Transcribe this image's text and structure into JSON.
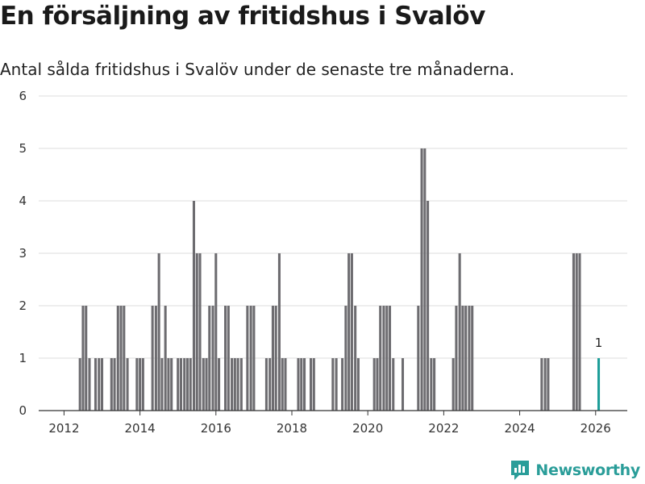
{
  "header": {
    "title": "En försäljning av fritidshus i Svalöv",
    "subtitle": "Antal sålda fritidshus i Svalöv under de senaste tre månaderna."
  },
  "brand": {
    "name": "Newsworthy"
  },
  "colors": {
    "bar": "#6d6c70",
    "highlight": "#1f9e99",
    "grid": "#dcdcdc"
  },
  "chart_data": {
    "type": "bar",
    "title": "En försäljning av fritidshus i Svalöv",
    "subtitle": "Antal sålda fritidshus i Svalöv under de senaste tre månaderna.",
    "xlabel": "",
    "ylabel": "",
    "ylim": [
      0,
      6
    ],
    "y_ticks": [
      "0",
      "1",
      "2",
      "3",
      "4",
      "5",
      "6"
    ],
    "xlim": [
      2011.333,
      2026.833
    ],
    "x_ticks": [
      {
        "label": "2012",
        "value": 2012
      },
      {
        "label": "2014",
        "value": 2014
      },
      {
        "label": "2016",
        "value": 2016
      },
      {
        "label": "2018",
        "value": 2018
      },
      {
        "label": "2020",
        "value": 2020
      },
      {
        "label": "2022",
        "value": 2022
      },
      {
        "label": "2024",
        "value": 2024
      },
      {
        "label": "2026",
        "value": 2026
      }
    ],
    "grid": true,
    "bar_width_years": 0.065,
    "series": [
      {
        "name": "Antal sålda fritidshus",
        "points": [
          {
            "x": 2012.42,
            "y": 1
          },
          {
            "x": 2012.5,
            "y": 2
          },
          {
            "x": 2012.58,
            "y": 2
          },
          {
            "x": 2012.67,
            "y": 1
          },
          {
            "x": 2012.83,
            "y": 1
          },
          {
            "x": 2012.92,
            "y": 1
          },
          {
            "x": 2013.0,
            "y": 1
          },
          {
            "x": 2013.25,
            "y": 1
          },
          {
            "x": 2013.33,
            "y": 1
          },
          {
            "x": 2013.42,
            "y": 2
          },
          {
            "x": 2013.5,
            "y": 2
          },
          {
            "x": 2013.58,
            "y": 2
          },
          {
            "x": 2013.67,
            "y": 1
          },
          {
            "x": 2013.92,
            "y": 1
          },
          {
            "x": 2014.0,
            "y": 1
          },
          {
            "x": 2014.08,
            "y": 1
          },
          {
            "x": 2014.33,
            "y": 2
          },
          {
            "x": 2014.42,
            "y": 2
          },
          {
            "x": 2014.5,
            "y": 3
          },
          {
            "x": 2014.58,
            "y": 1
          },
          {
            "x": 2014.67,
            "y": 2
          },
          {
            "x": 2014.75,
            "y": 1
          },
          {
            "x": 2014.83,
            "y": 1
          },
          {
            "x": 2015.0,
            "y": 1
          },
          {
            "x": 2015.08,
            "y": 1
          },
          {
            "x": 2015.17,
            "y": 1
          },
          {
            "x": 2015.25,
            "y": 1
          },
          {
            "x": 2015.33,
            "y": 1
          },
          {
            "x": 2015.42,
            "y": 4
          },
          {
            "x": 2015.5,
            "y": 3
          },
          {
            "x": 2015.58,
            "y": 3
          },
          {
            "x": 2015.67,
            "y": 1
          },
          {
            "x": 2015.75,
            "y": 1
          },
          {
            "x": 2015.83,
            "y": 2
          },
          {
            "x": 2015.92,
            "y": 2
          },
          {
            "x": 2016.0,
            "y": 3
          },
          {
            "x": 2016.08,
            "y": 1
          },
          {
            "x": 2016.25,
            "y": 2
          },
          {
            "x": 2016.33,
            "y": 2
          },
          {
            "x": 2016.42,
            "y": 1
          },
          {
            "x": 2016.5,
            "y": 1
          },
          {
            "x": 2016.58,
            "y": 1
          },
          {
            "x": 2016.67,
            "y": 1
          },
          {
            "x": 2016.83,
            "y": 2
          },
          {
            "x": 2016.92,
            "y": 2
          },
          {
            "x": 2017.0,
            "y": 2
          },
          {
            "x": 2017.33,
            "y": 1
          },
          {
            "x": 2017.42,
            "y": 1
          },
          {
            "x": 2017.5,
            "y": 2
          },
          {
            "x": 2017.58,
            "y": 2
          },
          {
            "x": 2017.67,
            "y": 3
          },
          {
            "x": 2017.75,
            "y": 1
          },
          {
            "x": 2017.83,
            "y": 1
          },
          {
            "x": 2018.17,
            "y": 1
          },
          {
            "x": 2018.25,
            "y": 1
          },
          {
            "x": 2018.33,
            "y": 1
          },
          {
            "x": 2018.5,
            "y": 1
          },
          {
            "x": 2018.58,
            "y": 1
          },
          {
            "x": 2019.08,
            "y": 1
          },
          {
            "x": 2019.17,
            "y": 1
          },
          {
            "x": 2019.33,
            "y": 1
          },
          {
            "x": 2019.42,
            "y": 2
          },
          {
            "x": 2019.5,
            "y": 3
          },
          {
            "x": 2019.58,
            "y": 3
          },
          {
            "x": 2019.67,
            "y": 2
          },
          {
            "x": 2019.75,
            "y": 1
          },
          {
            "x": 2020.17,
            "y": 1
          },
          {
            "x": 2020.25,
            "y": 1
          },
          {
            "x": 2020.33,
            "y": 2
          },
          {
            "x": 2020.42,
            "y": 2
          },
          {
            "x": 2020.5,
            "y": 2
          },
          {
            "x": 2020.58,
            "y": 2
          },
          {
            "x": 2020.67,
            "y": 1
          },
          {
            "x": 2020.92,
            "y": 1
          },
          {
            "x": 2021.33,
            "y": 2
          },
          {
            "x": 2021.42,
            "y": 5
          },
          {
            "x": 2021.5,
            "y": 5
          },
          {
            "x": 2021.58,
            "y": 4
          },
          {
            "x": 2021.67,
            "y": 1
          },
          {
            "x": 2021.75,
            "y": 1
          },
          {
            "x": 2022.25,
            "y": 1
          },
          {
            "x": 2022.33,
            "y": 2
          },
          {
            "x": 2022.42,
            "y": 3
          },
          {
            "x": 2022.5,
            "y": 2
          },
          {
            "x": 2022.58,
            "y": 2
          },
          {
            "x": 2022.67,
            "y": 2
          },
          {
            "x": 2022.75,
            "y": 2
          },
          {
            "x": 2024.58,
            "y": 1
          },
          {
            "x": 2024.67,
            "y": 1
          },
          {
            "x": 2024.75,
            "y": 1
          },
          {
            "x": 2025.42,
            "y": 3
          },
          {
            "x": 2025.5,
            "y": 3
          },
          {
            "x": 2025.58,
            "y": 3
          }
        ]
      }
    ],
    "highlight": {
      "x": 2026.08,
      "y": 1,
      "label": "1"
    }
  }
}
